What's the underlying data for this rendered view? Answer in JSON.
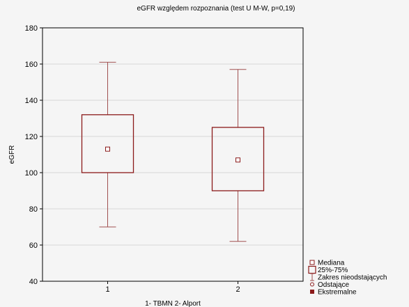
{
  "chart_data": {
    "type": "boxplot",
    "title": "eGFR względem rozpoznania (test U M-W, p=0,19)",
    "xlabel": "1- TBMN 2- Alport",
    "ylabel": "eGFR",
    "ylim": [
      40,
      180
    ],
    "yticks": [
      40,
      60,
      80,
      100,
      120,
      140,
      160,
      180
    ],
    "grid": true,
    "categories": [
      "1",
      "2"
    ],
    "boxes": [
      {
        "category": "1",
        "median": 113,
        "q1": 100,
        "q3": 132,
        "whisker_low": 70,
        "whisker_high": 161
      },
      {
        "category": "2",
        "median": 107,
        "q1": 90,
        "q3": 125,
        "whisker_low": 62,
        "whisker_high": 157
      }
    ],
    "legend": {
      "placement": "bottom-right",
      "entries": [
        "Mediana",
        "25%-75%",
        "Zakres nieodstających",
        "Odstające",
        "Ekstremalne"
      ]
    },
    "colors": {
      "box": "#8b1a1a",
      "whisker": "#a05050",
      "grid": "#d8d8d8"
    }
  }
}
